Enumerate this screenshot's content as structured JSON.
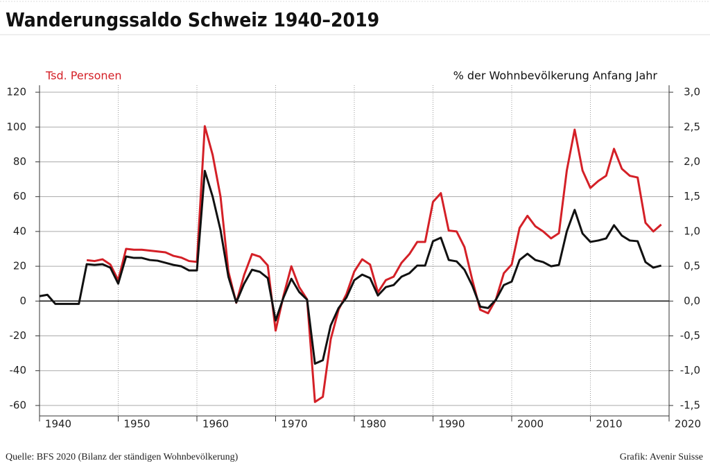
{
  "chart_data": {
    "type": "line",
    "title": "Wanderungssaldo Schweiz 1940–2019",
    "ylabel": "Tsd. Personen",
    "y2label": "% der Wohnbevölkerung Anfang Jahr",
    "source": "Quelle: BFS 2020 (Bilanz der ständigen Wohnbevölkerung)",
    "credit": "Grafik: Avenir Suisse",
    "x": [
      1940,
      1941,
      1942,
      1943,
      1944,
      1945,
      1946,
      1947,
      1948,
      1949,
      1950,
      1951,
      1952,
      1953,
      1954,
      1955,
      1956,
      1957,
      1958,
      1959,
      1960,
      1961,
      1962,
      1963,
      1964,
      1965,
      1966,
      1967,
      1968,
      1969,
      1970,
      1971,
      1972,
      1973,
      1974,
      1975,
      1976,
      1977,
      1978,
      1979,
      1980,
      1981,
      1982,
      1983,
      1984,
      1985,
      1986,
      1987,
      1988,
      1989,
      1990,
      1991,
      1992,
      1993,
      1994,
      1995,
      1996,
      1997,
      1998,
      1999,
      2000,
      2001,
      2002,
      2003,
      2004,
      2005,
      2006,
      2007,
      2008,
      2009,
      2010,
      2011,
      2012,
      2013,
      2014,
      2015,
      2016,
      2017,
      2018,
      2019
    ],
    "series": [
      {
        "name": "Tsd. Personen",
        "color": "#d42027",
        "values": [
          null,
          null,
          null,
          null,
          null,
          null,
          23.5,
          23,
          24,
          21,
          12,
          30,
          29.5,
          29.5,
          29,
          28.5,
          28,
          26,
          25,
          23,
          22.5,
          100.5,
          84,
          60,
          17,
          -1,
          15,
          27,
          25.5,
          20.5,
          -17,
          3,
          20,
          8,
          1,
          -58,
          -55,
          -22,
          -5,
          4,
          17,
          24,
          21,
          5,
          12,
          14,
          22,
          27,
          34,
          34,
          57,
          62,
          40.5,
          40,
          31,
          12,
          -5,
          -7,
          1,
          16,
          21,
          42,
          49,
          43,
          40,
          36,
          39,
          75,
          98.5,
          75,
          65,
          69,
          72,
          87.5,
          76,
          72,
          71,
          45,
          40,
          44
        ]
      },
      {
        "name": "% der Wohnbevölkerung Anfang Jahr",
        "color": "#111111",
        "axis": "y2",
        "values": [
          0.07,
          0.09,
          -0.04,
          -0.04,
          -0.04,
          -0.04,
          0.53,
          0.52,
          0.53,
          0.48,
          0.25,
          0.64,
          0.62,
          0.62,
          0.59,
          0.58,
          0.55,
          0.52,
          0.5,
          0.44,
          0.44,
          1.87,
          1.5,
          1.02,
          0.35,
          -0.02,
          0.25,
          0.45,
          0.42,
          0.33,
          -0.28,
          0.05,
          0.32,
          0.13,
          0.02,
          -0.9,
          -0.85,
          -0.35,
          -0.1,
          0.05,
          0.3,
          0.38,
          0.33,
          0.08,
          0.2,
          0.23,
          0.35,
          0.4,
          0.51,
          0.51,
          0.86,
          0.91,
          0.59,
          0.57,
          0.45,
          0.22,
          -0.08,
          -0.1,
          0.02,
          0.23,
          0.28,
          0.59,
          0.68,
          0.59,
          0.56,
          0.5,
          0.52,
          1.0,
          1.31,
          0.97,
          0.85,
          0.87,
          0.9,
          1.09,
          0.94,
          0.87,
          0.86,
          0.56,
          0.48,
          0.51
        ]
      }
    ],
    "xlim": [
      1940,
      2020
    ],
    "xticks": [
      1940,
      1950,
      1960,
      1970,
      1980,
      1990,
      2000,
      2010,
      2020
    ],
    "ylim": [
      -66,
      124
    ],
    "yticks": [
      -60,
      -40,
      -20,
      0,
      20,
      40,
      60,
      80,
      100,
      120
    ],
    "y2lim": [
      -1.65,
      3.1
    ],
    "y2ticks": [
      {
        "value": -1.5,
        "label": "-1,5"
      },
      {
        "value": -1,
        "label": "-1,0"
      },
      {
        "value": -0.5,
        "label": "-0,5"
      },
      {
        "value": 0,
        "label": "0,0"
      },
      {
        "value": 0.5,
        "label": "0,5"
      },
      {
        "value": 1,
        "label": "1,0"
      },
      {
        "value": 1.5,
        "label": "1,5"
      },
      {
        "value": 2,
        "label": "2,0"
      },
      {
        "value": 2.5,
        "label": "2,5"
      },
      {
        "value": 3,
        "label": "3,0"
      }
    ],
    "grid": true
  }
}
